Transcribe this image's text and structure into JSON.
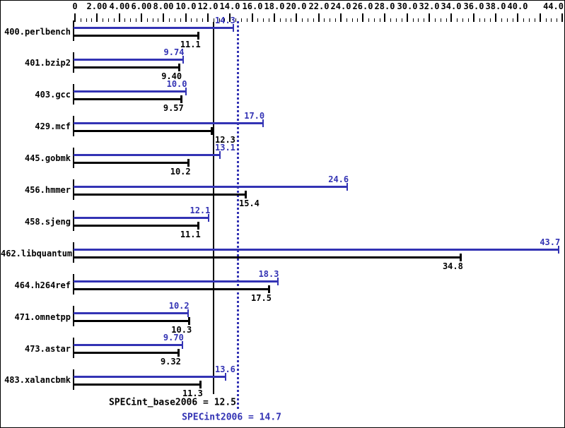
{
  "chart_data": {
    "type": "bar",
    "orientation": "horizontal",
    "title": "",
    "xlabel": "",
    "ylabel": "",
    "xlim": [
      0,
      44
    ],
    "grid": false,
    "legend_position": "none",
    "axis": {
      "minor_tick_step": 0.5,
      "major_tick_step": 2.0,
      "tick_labels": [
        {
          "value": 0,
          "label": "0"
        },
        {
          "value": 2,
          "label": "2.00"
        },
        {
          "value": 4,
          "label": "4.00"
        },
        {
          "value": 6,
          "label": "6.00"
        },
        {
          "value": 8,
          "label": "8.00"
        },
        {
          "value": 10,
          "label": "10.0"
        },
        {
          "value": 12,
          "label": "12.0"
        },
        {
          "value": 14,
          "label": "14.0"
        },
        {
          "value": 16,
          "label": "16.0"
        },
        {
          "value": 18,
          "label": "18.0"
        },
        {
          "value": 20,
          "label": "20.0"
        },
        {
          "value": 22,
          "label": "22.0"
        },
        {
          "value": 24,
          "label": "24.0"
        },
        {
          "value": 26,
          "label": "26.0"
        },
        {
          "value": 28,
          "label": "28.0"
        },
        {
          "value": 30,
          "label": "30.0"
        },
        {
          "value": 32,
          "label": "32.0"
        },
        {
          "value": 34,
          "label": "34.0"
        },
        {
          "value": 36,
          "label": "36.0"
        },
        {
          "value": 38,
          "label": "38.0"
        },
        {
          "value": 40,
          "label": "40.0"
        },
        {
          "value": 44,
          "label": "44.0"
        }
      ]
    },
    "categories": [
      "400.perlbench",
      "401.bzip2",
      "403.gcc",
      "429.mcf",
      "445.gobmk",
      "456.hmmer",
      "458.sjeng",
      "462.libquantum",
      "464.h264ref",
      "471.omnetpp",
      "473.astar",
      "483.xalancbmk"
    ],
    "series": [
      {
        "name": "peak",
        "color": "#3333b4",
        "values": [
          14.3,
          9.74,
          10.0,
          17.0,
          13.1,
          24.6,
          12.1,
          43.7,
          18.3,
          10.2,
          9.7,
          13.6
        ],
        "labels": [
          "14.3",
          "9.74",
          "10.0",
          "17.0",
          "13.1",
          "24.6",
          "12.1",
          "43.7",
          "18.3",
          "10.2",
          "9.70",
          "13.6"
        ]
      },
      {
        "name": "base",
        "color": "#000000",
        "values": [
          11.1,
          9.4,
          9.57,
          12.3,
          10.2,
          15.4,
          11.1,
          34.8,
          17.5,
          10.3,
          9.32,
          11.3
        ],
        "labels": [
          "11.1",
          "9.40",
          "9.57",
          "12.3",
          "10.2",
          "15.4",
          "11.1",
          "34.8",
          "17.5",
          "10.3",
          "9.32",
          "11.3"
        ]
      }
    ],
    "reference_lines": [
      {
        "name": "base_mean",
        "value": 12.5,
        "style": "solid",
        "color": "#000000",
        "label": "SPECint_base2006 = 12.5"
      },
      {
        "name": "peak_mean",
        "value": 14.7,
        "style": "dotted",
        "color": "#3333b4",
        "label": "SPECint2006 = 14.7"
      }
    ],
    "colors": {
      "peak_blue": "#3333b4",
      "base_black": "#000000",
      "background": "#ffffff"
    }
  }
}
